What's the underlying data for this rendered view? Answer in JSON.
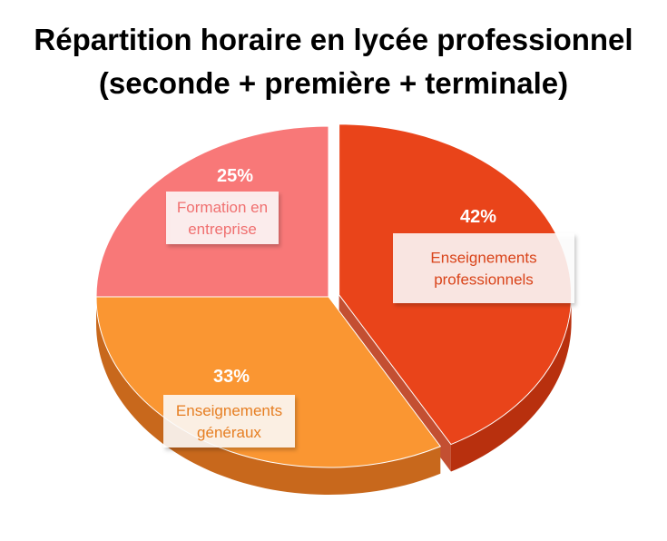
{
  "chart_data": {
    "type": "pie",
    "title_lines": [
      "Répartition horaire en lycée professionnel",
      "(seconde + première + terminale)"
    ],
    "slices": [
      {
        "label_lines": [
          "Enseignements",
          "professionnels"
        ],
        "value": 42,
        "value_label": "42%",
        "color": "#E9441A",
        "side_color": "#B8300E",
        "label_color": "#D9441A"
      },
      {
        "label_lines": [
          "Enseignements",
          "généraux"
        ],
        "value": 33,
        "value_label": "33%",
        "color": "#FA9632",
        "side_color": "#C8681C",
        "label_color": "#E67E22"
      },
      {
        "label_lines": [
          "Formation en",
          "entreprise"
        ],
        "value": 25,
        "value_label": "25%",
        "color": "#F87878",
        "side_color": "#C85050",
        "label_color": "#F07070"
      }
    ],
    "exploded_slice": "Enseignements professionnels",
    "legend": "none"
  }
}
